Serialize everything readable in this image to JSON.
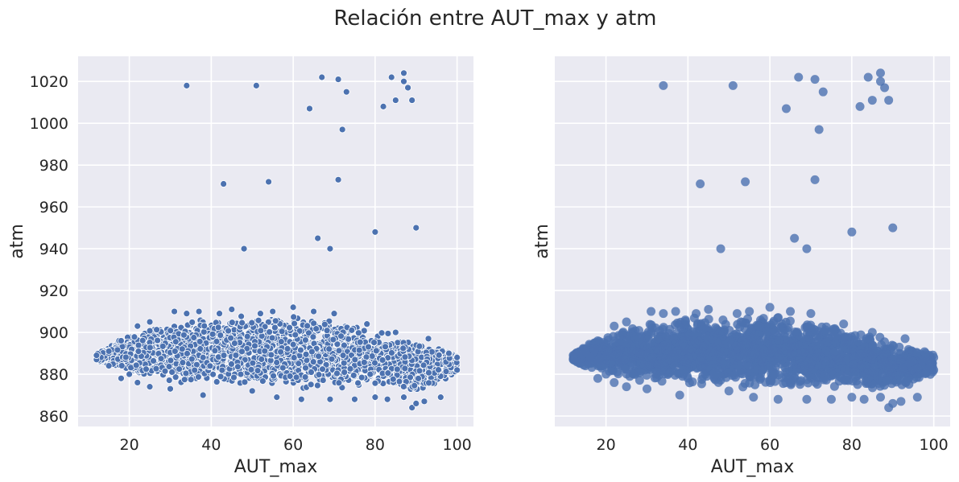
{
  "figure": {
    "title": "Relación entre AUT_max y atm",
    "colors": {
      "background": "#eaeaf2",
      "grid": "#ffffff",
      "point": "#4c72b0",
      "text": "#262626"
    }
  },
  "chart_data": [
    {
      "type": "scatter",
      "xlabel": "AUT_max",
      "ylabel": "atm",
      "xlim": [
        7.5,
        104
      ],
      "ylim": [
        855,
        1032
      ],
      "xticks": [
        20,
        40,
        60,
        80,
        100
      ],
      "yticks": [
        860,
        880,
        900,
        920,
        940,
        960,
        980,
        1000,
        1020
      ],
      "show_y_tick_labels": true,
      "grid": true,
      "marker": "small circle with white edge",
      "outliers": [
        {
          "x": 34,
          "y": 1018
        },
        {
          "x": 51,
          "y": 1018
        },
        {
          "x": 64,
          "y": 1007
        },
        {
          "x": 67,
          "y": 1022
        },
        {
          "x": 71,
          "y": 1021
        },
        {
          "x": 73,
          "y": 1015
        },
        {
          "x": 72,
          "y": 997
        },
        {
          "x": 82,
          "y": 1008
        },
        {
          "x": 84,
          "y": 1022
        },
        {
          "x": 85,
          "y": 1011
        },
        {
          "x": 87,
          "y": 1024
        },
        {
          "x": 87,
          "y": 1020
        },
        {
          "x": 88,
          "y": 1017
        },
        {
          "x": 89,
          "y": 1011
        },
        {
          "x": 43,
          "y": 971
        },
        {
          "x": 54,
          "y": 972
        },
        {
          "x": 71,
          "y": 973
        },
        {
          "x": 48,
          "y": 940
        },
        {
          "x": 66,
          "y": 945
        },
        {
          "x": 69,
          "y": 940
        },
        {
          "x": 80,
          "y": 948
        },
        {
          "x": 90,
          "y": 950
        }
      ],
      "cluster_points": [
        {
          "x": 12,
          "y": 887
        },
        {
          "x": 12,
          "y": 889
        },
        {
          "x": 15,
          "y": 884
        },
        {
          "x": 15,
          "y": 891
        },
        {
          "x": 18,
          "y": 878
        },
        {
          "x": 18,
          "y": 896
        },
        {
          "x": 20,
          "y": 880
        },
        {
          "x": 22,
          "y": 876
        },
        {
          "x": 22,
          "y": 903
        },
        {
          "x": 25,
          "y": 874
        },
        {
          "x": 25,
          "y": 905
        },
        {
          "x": 30,
          "y": 873
        },
        {
          "x": 31,
          "y": 910
        },
        {
          "x": 34,
          "y": 909
        },
        {
          "x": 37,
          "y": 910
        },
        {
          "x": 38,
          "y": 870
        },
        {
          "x": 42,
          "y": 909
        },
        {
          "x": 45,
          "y": 911
        },
        {
          "x": 50,
          "y": 872
        },
        {
          "x": 52,
          "y": 909
        },
        {
          "x": 55,
          "y": 910
        },
        {
          "x": 56,
          "y": 869
        },
        {
          "x": 60,
          "y": 912
        },
        {
          "x": 62,
          "y": 868
        },
        {
          "x": 65,
          "y": 910
        },
        {
          "x": 69,
          "y": 868
        },
        {
          "x": 70,
          "y": 909
        },
        {
          "x": 75,
          "y": 868
        },
        {
          "x": 78,
          "y": 904
        },
        {
          "x": 80,
          "y": 869
        },
        {
          "x": 83,
          "y": 868
        },
        {
          "x": 85,
          "y": 900
        },
        {
          "x": 87,
          "y": 869
        },
        {
          "x": 89,
          "y": 864
        },
        {
          "x": 90,
          "y": 866
        },
        {
          "x": 92,
          "y": 867
        },
        {
          "x": 93,
          "y": 897
        },
        {
          "x": 96,
          "y": 869
        },
        {
          "x": 98,
          "y": 890
        },
        {
          "x": 100,
          "y": 882
        },
        {
          "x": 100,
          "y": 888
        }
      ],
      "cluster_band": {
        "x_range": [
          12,
          100
        ],
        "upper": [
          [
            12,
            890
          ],
          [
            20,
            899
          ],
          [
            30,
            905
          ],
          [
            45,
            908
          ],
          [
            60,
            909
          ],
          [
            70,
            906
          ],
          [
            80,
            902
          ],
          [
            90,
            896
          ],
          [
            100,
            890
          ]
        ],
        "lower": [
          [
            12,
            886
          ],
          [
            20,
            880
          ],
          [
            30,
            876
          ],
          [
            45,
            874
          ],
          [
            60,
            873
          ],
          [
            70,
            873
          ],
          [
            80,
            873
          ],
          [
            90,
            871
          ],
          [
            100,
            880
          ]
        ]
      }
    },
    {
      "type": "scatter",
      "xlabel": "AUT_max",
      "ylabel": "atm",
      "xlim": [
        7.5,
        104
      ],
      "ylim": [
        855,
        1032
      ],
      "xticks": [
        20,
        40,
        60,
        80,
        100
      ],
      "yticks": [
        860,
        880,
        900,
        920,
        940,
        960,
        980,
        1000,
        1020
      ],
      "show_y_tick_labels": false,
      "grid": true,
      "marker": "larger circle, semi-transparent, no edge",
      "outliers": [
        {
          "x": 34,
          "y": 1018
        },
        {
          "x": 51,
          "y": 1018
        },
        {
          "x": 64,
          "y": 1007
        },
        {
          "x": 67,
          "y": 1022
        },
        {
          "x": 71,
          "y": 1021
        },
        {
          "x": 73,
          "y": 1015
        },
        {
          "x": 72,
          "y": 997
        },
        {
          "x": 82,
          "y": 1008
        },
        {
          "x": 84,
          "y": 1022
        },
        {
          "x": 85,
          "y": 1011
        },
        {
          "x": 87,
          "y": 1024
        },
        {
          "x": 87,
          "y": 1020
        },
        {
          "x": 88,
          "y": 1017
        },
        {
          "x": 89,
          "y": 1011
        },
        {
          "x": 43,
          "y": 971
        },
        {
          "x": 54,
          "y": 972
        },
        {
          "x": 71,
          "y": 973
        },
        {
          "x": 48,
          "y": 940
        },
        {
          "x": 66,
          "y": 945
        },
        {
          "x": 69,
          "y": 940
        },
        {
          "x": 80,
          "y": 948
        },
        {
          "x": 90,
          "y": 950
        }
      ],
      "cluster_points": [
        {
          "x": 12,
          "y": 887
        },
        {
          "x": 12,
          "y": 889
        },
        {
          "x": 15,
          "y": 884
        },
        {
          "x": 15,
          "y": 891
        },
        {
          "x": 18,
          "y": 878
        },
        {
          "x": 18,
          "y": 896
        },
        {
          "x": 20,
          "y": 880
        },
        {
          "x": 22,
          "y": 876
        },
        {
          "x": 22,
          "y": 903
        },
        {
          "x": 25,
          "y": 874
        },
        {
          "x": 25,
          "y": 905
        },
        {
          "x": 30,
          "y": 873
        },
        {
          "x": 31,
          "y": 910
        },
        {
          "x": 34,
          "y": 909
        },
        {
          "x": 37,
          "y": 910
        },
        {
          "x": 38,
          "y": 870
        },
        {
          "x": 42,
          "y": 909
        },
        {
          "x": 45,
          "y": 911
        },
        {
          "x": 50,
          "y": 872
        },
        {
          "x": 52,
          "y": 909
        },
        {
          "x": 55,
          "y": 910
        },
        {
          "x": 56,
          "y": 869
        },
        {
          "x": 60,
          "y": 912
        },
        {
          "x": 62,
          "y": 868
        },
        {
          "x": 65,
          "y": 910
        },
        {
          "x": 69,
          "y": 868
        },
        {
          "x": 70,
          "y": 909
        },
        {
          "x": 75,
          "y": 868
        },
        {
          "x": 78,
          "y": 904
        },
        {
          "x": 80,
          "y": 869
        },
        {
          "x": 83,
          "y": 868
        },
        {
          "x": 85,
          "y": 900
        },
        {
          "x": 87,
          "y": 869
        },
        {
          "x": 89,
          "y": 864
        },
        {
          "x": 90,
          "y": 866
        },
        {
          "x": 92,
          "y": 867
        },
        {
          "x": 93,
          "y": 897
        },
        {
          "x": 96,
          "y": 869
        },
        {
          "x": 98,
          "y": 890
        },
        {
          "x": 100,
          "y": 882
        },
        {
          "x": 100,
          "y": 888
        }
      ],
      "cluster_band": {
        "x_range": [
          12,
          100
        ],
        "upper": [
          [
            12,
            890
          ],
          [
            20,
            899
          ],
          [
            30,
            905
          ],
          [
            45,
            908
          ],
          [
            60,
            909
          ],
          [
            70,
            906
          ],
          [
            80,
            902
          ],
          [
            90,
            896
          ],
          [
            100,
            890
          ]
        ],
        "lower": [
          [
            12,
            886
          ],
          [
            20,
            880
          ],
          [
            30,
            876
          ],
          [
            45,
            874
          ],
          [
            60,
            873
          ],
          [
            70,
            873
          ],
          [
            80,
            873
          ],
          [
            90,
            871
          ],
          [
            100,
            880
          ]
        ]
      }
    }
  ]
}
